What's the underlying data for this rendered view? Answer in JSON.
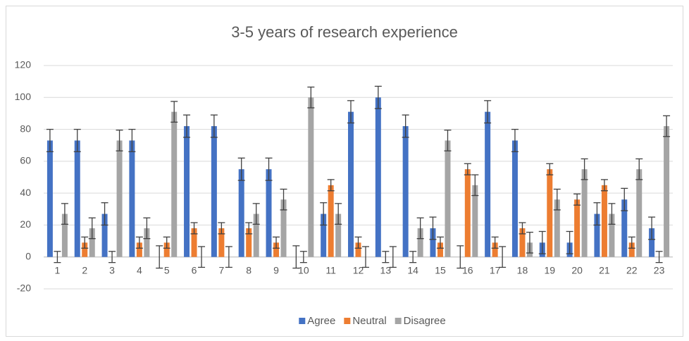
{
  "chart_data": {
    "type": "bar",
    "title": "3-5 years of research experience",
    "categories": [
      "1",
      "2",
      "3",
      "4",
      "5",
      "6",
      "7",
      "8",
      "9",
      "10",
      "11",
      "12",
      "13",
      "14",
      "15",
      "16",
      "17",
      "18",
      "19",
      "20",
      "21",
      "22",
      "23"
    ],
    "series": [
      {
        "name": "Agree",
        "color": "#4472c4",
        "error": 7,
        "values": [
          73,
          73,
          27,
          73,
          0,
          82,
          82,
          55,
          55,
          0,
          27,
          91,
          100,
          82,
          18,
          0,
          91,
          73,
          9,
          9,
          27,
          36,
          18
        ]
      },
      {
        "name": "Neutral",
        "color": "#ed7d31",
        "error": 3.5,
        "values": [
          0,
          9,
          0,
          9,
          9,
          18,
          18,
          18,
          9,
          0,
          45,
          9,
          0,
          0,
          9,
          55,
          9,
          18,
          55,
          36,
          45,
          9,
          0
        ]
      },
      {
        "name": "Disagree",
        "color": "#a5a5a5",
        "error": 6.5,
        "values": [
          27,
          18,
          73,
          18,
          91,
          0,
          0,
          27,
          36,
          100,
          27,
          0,
          0,
          18,
          73,
          45,
          0,
          9,
          36,
          55,
          27,
          55,
          82
        ]
      }
    ],
    "ylim": [
      -20,
      120
    ],
    "yticks": [
      -20,
      0,
      20,
      40,
      60,
      80,
      100,
      120
    ],
    "grid": true,
    "legend": "bottom"
  }
}
